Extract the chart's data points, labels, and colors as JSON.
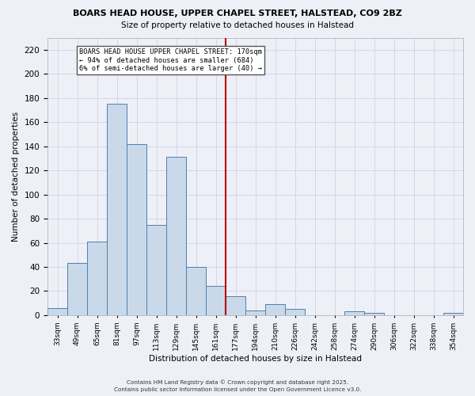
{
  "title": "BOARS HEAD HOUSE, UPPER CHAPEL STREET, HALSTEAD, CO9 2BZ",
  "subtitle": "Size of property relative to detached houses in Halstead",
  "xlabel": "Distribution of detached houses by size in Halstead",
  "ylabel": "Number of detached properties",
  "bar_labels": [
    "33sqm",
    "49sqm",
    "65sqm",
    "81sqm",
    "97sqm",
    "113sqm",
    "129sqm",
    "145sqm",
    "161sqm",
    "177sqm",
    "194sqm",
    "210sqm",
    "226sqm",
    "242sqm",
    "258sqm",
    "274sqm",
    "290sqm",
    "306sqm",
    "322sqm",
    "338sqm",
    "354sqm"
  ],
  "bar_values": [
    6,
    43,
    61,
    175,
    142,
    75,
    131,
    40,
    24,
    16,
    4,
    9,
    5,
    0,
    0,
    3,
    2,
    0,
    0,
    0,
    2
  ],
  "bar_color": "#c9d9ea",
  "bar_edgecolor": "#4f7faa",
  "vline_x": 8.5,
  "vline_color": "#bb0000",
  "annotation_title": "BOARS HEAD HOUSE UPPER CHAPEL STREET: 170sqm",
  "annotation_line1": "← 94% of detached houses are smaller (684)",
  "annotation_line2": "6% of semi-detached houses are larger (40) →",
  "ylim": [
    0,
    230
  ],
  "yticks": [
    0,
    20,
    40,
    60,
    80,
    100,
    120,
    140,
    160,
    180,
    200,
    220
  ],
  "footer1": "Contains HM Land Registry data © Crown copyright and database right 2025.",
  "footer2": "Contains public sector information licensed under the Open Government Licence v3.0.",
  "bg_color": "#eef0f8",
  "grid_color": "#ccccdd"
}
